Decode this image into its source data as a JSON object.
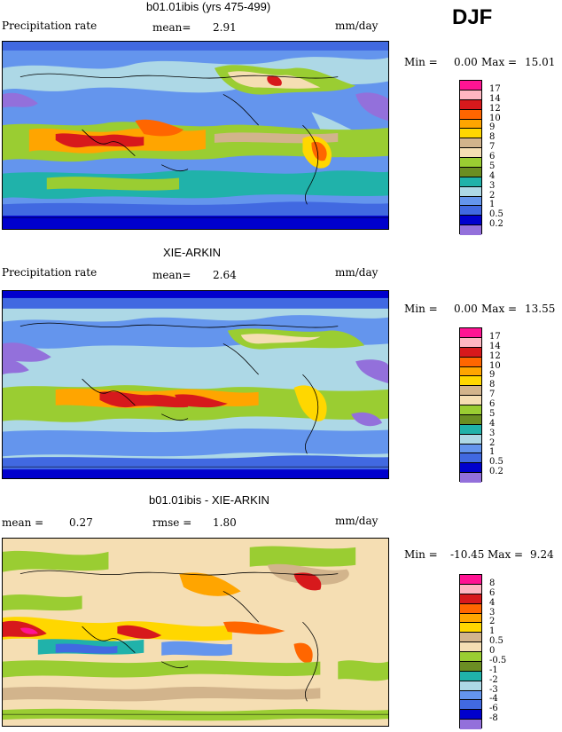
{
  "season": "DJF",
  "panels": [
    {
      "title": "b01.01ibis (yrs 475-499)",
      "left_label": "Precipitation rate",
      "mean_label": "mean=",
      "mean_value": "2.91",
      "units": "mm/day",
      "min_label": "Min =",
      "min_value": "0.00",
      "max_label": "Max =",
      "max_value": "15.01",
      "colorbar": {
        "colors": [
          "#ff1493",
          "#ffb6c1",
          "#d7191c",
          "#ff6600",
          "#ffa500",
          "#ffd700",
          "#d2b48c",
          "#f5deb3",
          "#9acd32",
          "#6b8e23",
          "#20b2aa",
          "#add8e6",
          "#6495ed",
          "#4169e1",
          "#0000cd",
          "#9370db"
        ],
        "labels": [
          "17",
          "14",
          "12",
          "10",
          "9",
          "8",
          "7",
          "6",
          "5",
          "4",
          "3",
          "2",
          "1",
          "0.5",
          "0.2"
        ]
      }
    },
    {
      "title": "XIE-ARKIN",
      "left_label": "Precipitation rate",
      "mean_label": "mean=",
      "mean_value": "2.64",
      "units": "mm/day",
      "min_label": "Min =",
      "min_value": "0.00",
      "max_label": "Max =",
      "max_value": "13.55",
      "colorbar": {
        "colors": [
          "#ff1493",
          "#ffb6c1",
          "#d7191c",
          "#ff6600",
          "#ffa500",
          "#ffd700",
          "#d2b48c",
          "#f5deb3",
          "#9acd32",
          "#6b8e23",
          "#20b2aa",
          "#add8e6",
          "#6495ed",
          "#4169e1",
          "#0000cd",
          "#9370db"
        ],
        "labels": [
          "17",
          "14",
          "12",
          "10",
          "9",
          "8",
          "7",
          "6",
          "5",
          "4",
          "3",
          "2",
          "1",
          "0.5",
          "0.2"
        ]
      }
    },
    {
      "title": "b01.01ibis - XIE-ARKIN",
      "left_label": "mean =",
      "left_value": "0.27",
      "mean_label": "rmse =",
      "mean_value": "1.80",
      "units": "mm/day",
      "min_label": "Min =",
      "min_value": "-10.45",
      "max_label": "Max =",
      "max_value": "9.24",
      "colorbar": {
        "colors": [
          "#ff1493",
          "#ffb6c1",
          "#d7191c",
          "#ff6600",
          "#ffa500",
          "#ffd700",
          "#d2b48c",
          "#f5deb3",
          "#9acd32",
          "#6b8e23",
          "#20b2aa",
          "#add8e6",
          "#6495ed",
          "#4169e1",
          "#0000cd",
          "#9370db"
        ],
        "labels": [
          "8",
          "6",
          "4",
          "3",
          "2",
          "1",
          "0.5",
          "0",
          "-0.5",
          "-1",
          "-2",
          "-3",
          "-4",
          "-6",
          "-8"
        ]
      }
    }
  ]
}
